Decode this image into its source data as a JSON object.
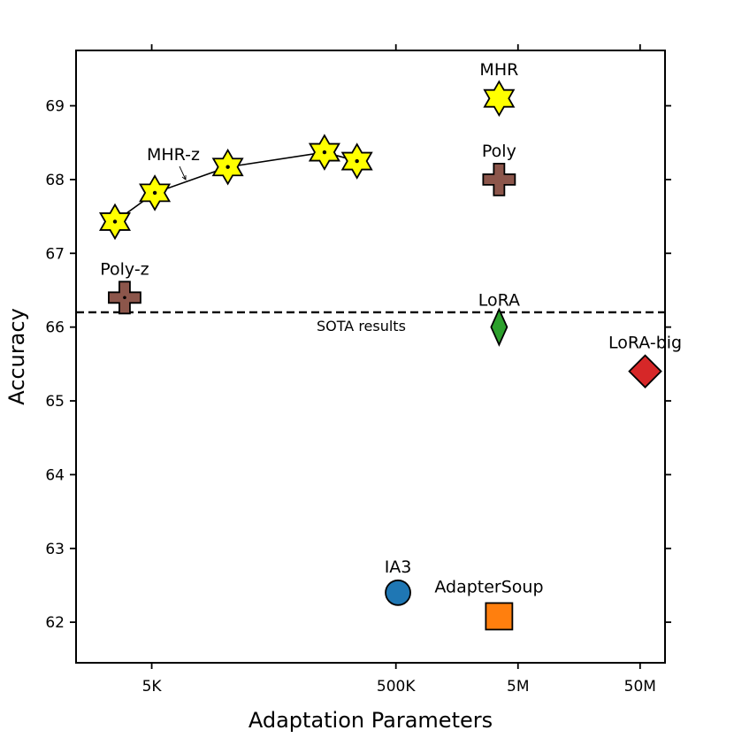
{
  "chart_data": {
    "type": "scatter",
    "xscale": "log",
    "xlabel": "Adaptation Parameters",
    "ylabel": "Accuracy",
    "xlim": [
      1200,
      80000000
    ],
    "ylim": [
      61.45,
      69.75
    ],
    "xticks": [
      {
        "value": 5000,
        "label": "5K"
      },
      {
        "value": 500000,
        "label": "500K"
      },
      {
        "value": 5000000,
        "label": "5M"
      },
      {
        "value": 50000000,
        "label": "50M"
      }
    ],
    "yticks": [
      {
        "value": 62,
        "label": "62"
      },
      {
        "value": 63,
        "label": "63"
      },
      {
        "value": 64,
        "label": "64"
      },
      {
        "value": 65,
        "label": "65"
      },
      {
        "value": 66,
        "label": "66"
      },
      {
        "value": 67,
        "label": "67"
      },
      {
        "value": 68,
        "label": "68"
      },
      {
        "value": 69,
        "label": "69"
      }
    ],
    "reference_line": {
      "y": 66.2,
      "label": "SOTA results",
      "style": "dashed"
    },
    "mhr_z_curve": {
      "label": "MHR-z",
      "x": [
        2500,
        5300,
        21000,
        130000,
        240000
      ],
      "y": [
        67.43,
        67.82,
        68.17,
        68.37,
        68.25
      ],
      "marker": "hexagram",
      "color": "#ffff00"
    },
    "points": [
      {
        "name": "MHR",
        "x": 3500000,
        "y": 69.1,
        "marker": "hexagram",
        "color": "#ffff00",
        "label_pos": "above"
      },
      {
        "name": "Poly",
        "x": 3500000,
        "y": 68.0,
        "marker": "plus",
        "color": "#8c564b",
        "label_pos": "above"
      },
      {
        "name": "Poly-z",
        "x": 3000,
        "y": 66.4,
        "marker": "plus",
        "color": "#8c564b",
        "label_pos": "above"
      },
      {
        "name": "LoRA",
        "x": 3500000,
        "y": 66.0,
        "marker": "diamond-thin",
        "color": "#2ca02c",
        "label_pos": "above"
      },
      {
        "name": "LoRA-big",
        "x": 55000000,
        "y": 65.4,
        "marker": "diamond",
        "color": "#d62728",
        "label_pos": "above"
      },
      {
        "name": "IA3",
        "x": 520000,
        "y": 62.4,
        "marker": "circle",
        "color": "#1f77b4",
        "label_pos": "above"
      },
      {
        "name": "AdapterSoup",
        "x": 3500000,
        "y": 62.08,
        "marker": "square",
        "color": "#ff7f0e",
        "label_pos": "above-left"
      }
    ]
  }
}
